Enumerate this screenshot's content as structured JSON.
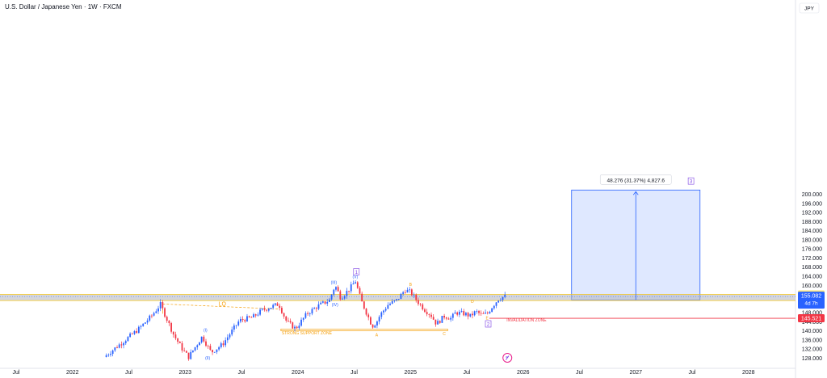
{
  "chart_data": {
    "type": "candlestick",
    "title": "U.S. Dollar / Japanese Yen · 1W · FXCM",
    "currency": "JPY",
    "ylim": [
      126,
      208
    ],
    "y_ticks": [
      "128.000",
      "132.000",
      "136.000",
      "140.000",
      "144.000",
      "148.000",
      "152.000",
      "156.000",
      "160.000",
      "164.000",
      "168.000",
      "172.000",
      "176.000",
      "180.000",
      "184.000",
      "188.000",
      "192.000",
      "196.000",
      "200.000"
    ],
    "x_ticks": [
      {
        "label": "Jul",
        "t": 2021.5
      },
      {
        "label": "2022",
        "t": 2022.0
      },
      {
        "label": "Jul",
        "t": 2022.5
      },
      {
        "label": "2023",
        "t": 2023.0
      },
      {
        "label": "Jul",
        "t": 2023.5
      },
      {
        "label": "2024",
        "t": 2024.0
      },
      {
        "label": "Jul",
        "t": 2024.5
      },
      {
        "label": "2025",
        "t": 2025.0
      },
      {
        "label": "Jul",
        "t": 2025.5
      },
      {
        "label": "2026",
        "t": 2026.0
      },
      {
        "label": "Jul",
        "t": 2026.5
      },
      {
        "label": "2027",
        "t": 2027.0
      },
      {
        "label": "Jul",
        "t": 2027.5
      },
      {
        "label": "2028",
        "t": 2028.0
      }
    ],
    "price_path": [
      [
        2022.3,
        128.5
      ],
      [
        2022.45,
        134.5
      ],
      [
        2022.6,
        140.5
      ],
      [
        2022.72,
        146.5
      ],
      [
        2022.8,
        151.6
      ],
      [
        2022.92,
        138.0
      ],
      [
        2023.0,
        131.5
      ],
      [
        2023.05,
        128.5
      ],
      [
        2023.17,
        137.5
      ],
      [
        2023.25,
        130.5
      ],
      [
        2023.35,
        134.0
      ],
      [
        2023.5,
        144.5
      ],
      [
        2023.62,
        146.0
      ],
      [
        2023.7,
        149.0
      ],
      [
        2023.85,
        151.8
      ],
      [
        2023.92,
        144.0
      ],
      [
        2024.0,
        141.0
      ],
      [
        2024.1,
        147.5
      ],
      [
        2024.2,
        151.0
      ],
      [
        2024.3,
        153.5
      ],
      [
        2024.35,
        160.0
      ],
      [
        2024.4,
        154.5
      ],
      [
        2024.48,
        158.5
      ],
      [
        2024.53,
        161.9
      ],
      [
        2024.58,
        153.5
      ],
      [
        2024.68,
        142.0
      ],
      [
        2024.72,
        144.0
      ],
      [
        2024.75,
        147.0
      ],
      [
        2024.82,
        151.5
      ],
      [
        2024.9,
        153.5
      ],
      [
        2024.97,
        158.0
      ],
      [
        2025.02,
        157.0
      ],
      [
        2025.08,
        153.0
      ],
      [
        2025.15,
        149.0
      ],
      [
        2025.2,
        147.0
      ],
      [
        2025.25,
        143.0
      ],
      [
        2025.32,
        146.5
      ],
      [
        2025.38,
        145.5
      ],
      [
        2025.42,
        148.0
      ],
      [
        2025.5,
        147.5
      ],
      [
        2025.55,
        146.5
      ],
      [
        2025.6,
        148.5
      ],
      [
        2025.65,
        147.0
      ],
      [
        2025.7,
        147.5
      ],
      [
        2025.75,
        151.0
      ],
      [
        2025.8,
        154.0
      ],
      [
        2025.85,
        155.1
      ]
    ],
    "current_price": {
      "value": "155.082",
      "countdown": "4d 7h"
    },
    "price_tags": [
      {
        "value": "156.025",
        "y": 156.025,
        "bg": "#fbe57a",
        "color": "#131722"
      },
      {
        "value": "153.299",
        "y": 153.299,
        "bg": "#fbe57a",
        "color": "#131722"
      },
      {
        "value": "145.521",
        "y": 145.521,
        "bg": "#f23645",
        "color": "#ffffff"
      }
    ],
    "zones": {
      "resistance_band": {
        "ymin": 153.299,
        "ymax": 156.025
      },
      "target_box": {
        "t0": 2026.43,
        "t1": 2027.57,
        "ymin": 153.6,
        "ymax": 201.9
      },
      "invalidation_level": 145.521,
      "support_zone": {
        "t0": 2023.85,
        "t1": 2025.33,
        "ymin": 140.0,
        "ymax": 140.8
      }
    },
    "measure_label": "48.276 (31.37%) 4,827.6",
    "lq_line": {
      "t0": 2022.8,
      "y0": 151.8,
      "t1": 2023.83,
      "y1": 149.6
    },
    "annotations": [
      {
        "text": "LQ",
        "t": 2023.33,
        "y": 151.0,
        "color": "#f59f0a",
        "size": 7
      },
      {
        "text": "STRONG SUPPORT ZONE",
        "t": 2024.08,
        "y": 138.4,
        "color": "#f59f0a",
        "size": 5
      },
      {
        "text": "(I)",
        "t": 2023.18,
        "y": 139.6,
        "color": "#2962ff",
        "size": 5
      },
      {
        "text": "(II)",
        "t": 2023.2,
        "y": 127.4,
        "color": "#2962ff",
        "size": 5
      },
      {
        "text": "(III)",
        "t": 2024.32,
        "y": 160.6,
        "color": "#2962ff",
        "size": 5
      },
      {
        "text": "(IV)",
        "t": 2024.33,
        "y": 150.8,
        "color": "#2962ff",
        "size": 5
      },
      {
        "text": "(V)",
        "t": 2024.51,
        "y": 163.2,
        "color": "#2962ff",
        "size": 5
      },
      {
        "text": "B",
        "t": 2025.0,
        "y": 159.7,
        "color": "#f59f0a",
        "size": 5
      },
      {
        "text": "A",
        "t": 2024.7,
        "y": 137.5,
        "color": "#f59f0a",
        "size": 5
      },
      {
        "text": "C",
        "t": 2025.3,
        "y": 138.0,
        "color": "#f59f0a",
        "size": 5
      },
      {
        "text": "D",
        "t": 2025.55,
        "y": 152.2,
        "color": "#f59f0a",
        "size": 5
      },
      {
        "text": "E",
        "t": 2025.68,
        "y": 145.0,
        "color": "#f59f0a",
        "size": 5
      },
      {
        "text": "INVALIDATION ZONE",
        "t": 2026.03,
        "y": 144.2,
        "color": "#f23645",
        "size": 5
      }
    ],
    "boxed_labels": [
      {
        "text": "1",
        "t": 2024.52,
        "y": 165.6
      },
      {
        "text": "2",
        "t": 2025.69,
        "y": 142.7
      },
      {
        "text": "3",
        "t": 2027.49,
        "y": 205.5
      }
    ],
    "grid": false
  }
}
